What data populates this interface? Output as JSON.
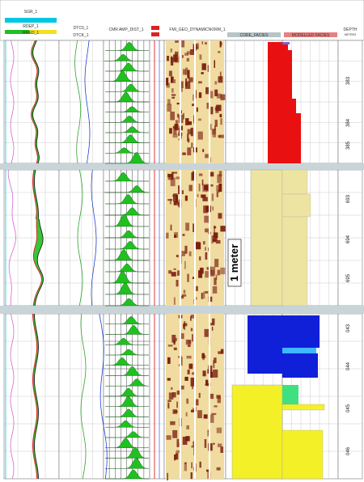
{
  "header": {
    "track1": {
      "curves": [
        {
          "label": "SGR_1",
          "color": "#d050d0"
        },
        {
          "label": "",
          "color": "#00c8e0"
        },
        {
          "label": "RDEP_1",
          "color": "#e02020"
        },
        {
          "label": "RMED_1",
          "color": "#20c020"
        }
      ],
      "bottom_label": "",
      "fill_colors": [
        "#20c020",
        "#f0e020"
      ]
    },
    "track2": {
      "curves": [
        {
          "label": "DTC0_1",
          "color": "#30a030"
        },
        {
          "label": "DTCK_1",
          "color": "#2040d0"
        }
      ]
    },
    "track3": {
      "label": "CMR AMP_DIST_1"
    },
    "track4": {
      "label": ""
    },
    "track5": {
      "label": "FMI_GEO_DYNAMICNORM_1"
    },
    "track6": {
      "label": "CORE_FACIES"
    },
    "track7": {
      "label": "MODELLED FACIES"
    },
    "depth_track": {
      "title": "DEPTH",
      "unit": "METRES"
    }
  },
  "scale_bar": {
    "label": "1 meter"
  },
  "depth_labels": {
    "section1": [
      "383",
      "384",
      "385"
    ],
    "section2": [
      "693",
      "694",
      "695"
    ],
    "section3": [
      "043",
      "044",
      "045",
      "046"
    ]
  },
  "colors": {
    "core_red": "#e81010",
    "core_tan": "#ece4a0",
    "facies_blue": "#1020d8",
    "facies_light_blue": "#40b8ff",
    "facies_green": "#40e080",
    "facies_yellow": "#f4f028",
    "fmi_dark": "#7a1e10",
    "fmi_light": "#f0dca0",
    "cmr_green": "#20c020",
    "section_divider": "#c8d4d8"
  }
}
